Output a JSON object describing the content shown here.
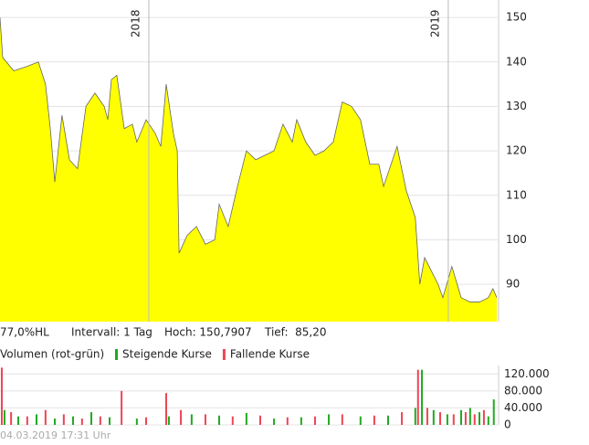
{
  "chart_data": [
    {
      "type": "area",
      "x": [
        2017.503,
        2017.512,
        2017.549,
        2017.594,
        2017.631,
        2017.655,
        2017.671,
        2017.686,
        2017.71,
        2017.735,
        2017.762,
        2017.79,
        2017.82,
        2017.851,
        2017.863,
        2017.875,
        2017.893,
        2017.918,
        2017.945,
        2017.96,
        2017.991,
        2018.021,
        2018.04,
        2018.058,
        2018.082,
        2018.095,
        2018.101,
        2018.128,
        2018.159,
        2018.189,
        2018.22,
        2018.235,
        2018.265,
        2018.296,
        2018.326,
        2018.357,
        2018.387,
        2018.418,
        2018.448,
        2018.479,
        2018.494,
        2018.524,
        2018.555,
        2018.585,
        2018.616,
        2018.646,
        2018.677,
        2018.707,
        2018.738,
        2018.768,
        2018.784,
        2018.829,
        2018.86,
        2018.89,
        2018.905,
        2018.921,
        2018.966,
        2018.982,
        2019.012,
        2019.043,
        2019.073,
        2019.104,
        2019.134,
        2019.149,
        2019.162
      ],
      "values": [
        150,
        141,
        138,
        139,
        140,
        135,
        125,
        113,
        128,
        118,
        116,
        130,
        133,
        130,
        127,
        136,
        137,
        125,
        126,
        122,
        127,
        124,
        121,
        135,
        124,
        120,
        97,
        101,
        103,
        99,
        100,
        108,
        103,
        112,
        120,
        118,
        119,
        120,
        126,
        122,
        127,
        122,
        119,
        120,
        122,
        131,
        130,
        127,
        117,
        117,
        112,
        121,
        111,
        105,
        90,
        96,
        90,
        87,
        94,
        87,
        86,
        86,
        87,
        89,
        87
      ],
      "color": "#ffff00",
      "line_color": "#666666",
      "xlim": [
        2017.503,
        2019.165
      ],
      "xticks": [
        2018,
        2019
      ],
      "ylim": [
        81.6,
        152.9
      ],
      "yticks": [
        90,
        100,
        110,
        120,
        130,
        140,
        150
      ],
      "grid": true
    },
    {
      "type": "bar",
      "title": "Volumen (rot-grün)",
      "series": [
        {
          "name": "Steigende Kurse",
          "color": "#22aa22",
          "x": [
            2017.518,
            2017.564,
            2017.625,
            2017.686,
            2017.747,
            2017.808,
            2017.869,
            2017.96,
            2018.067,
            2018.143,
            2018.235,
            2018.326,
            2018.418,
            2018.509,
            2018.601,
            2018.707,
            2018.799,
            2018.89,
            2018.912,
            2018.951,
            2018.997,
            2019.043,
            2019.073,
            2019.104,
            2019.134,
            2019.152
          ],
          "values": [
            35000,
            20000,
            25000,
            15000,
            20000,
            30000,
            18000,
            15000,
            20000,
            25000,
            22000,
            28000,
            15000,
            18000,
            25000,
            20000,
            22000,
            40000,
            130000,
            35000,
            25000,
            35000,
            40000,
            30000,
            20000,
            60000
          ]
        },
        {
          "name": "Fallende Kurse",
          "color": "#ee4455",
          "x": [
            2017.509,
            2017.54,
            2017.594,
            2017.655,
            2017.716,
            2017.777,
            2017.838,
            2017.909,
            2017.991,
            2018.058,
            2018.107,
            2018.189,
            2018.28,
            2018.372,
            2018.463,
            2018.555,
            2018.646,
            2018.753,
            2018.845,
            2018.899,
            2018.93,
            2018.973,
            2019.018,
            2019.058,
            2019.088,
            2019.119
          ],
          "values": [
            135000,
            30000,
            20000,
            35000,
            25000,
            15000,
            20000,
            80000,
            18000,
            75000,
            35000,
            25000,
            20000,
            22000,
            18000,
            20000,
            25000,
            22000,
            30000,
            130000,
            40000,
            30000,
            25000,
            30000,
            25000,
            35000
          ]
        }
      ],
      "xlim": [
        2017.503,
        2019.165
      ],
      "ylim": [
        0,
        140000
      ],
      "yticks": [
        0,
        {
          "value": 40000,
          "label": "40.000"
        },
        {
          "value": 80000,
          "label": "80.000"
        },
        {
          "value": 120000,
          "label": "120.000"
        }
      ],
      "grid": true
    }
  ],
  "info": [
    "77,0%HL",
    "Intervall: 1 Tag",
    "Hoch: 150,7907",
    "Tief:  85,20"
  ],
  "footer": "04.03.2019 17:31 Uhr"
}
